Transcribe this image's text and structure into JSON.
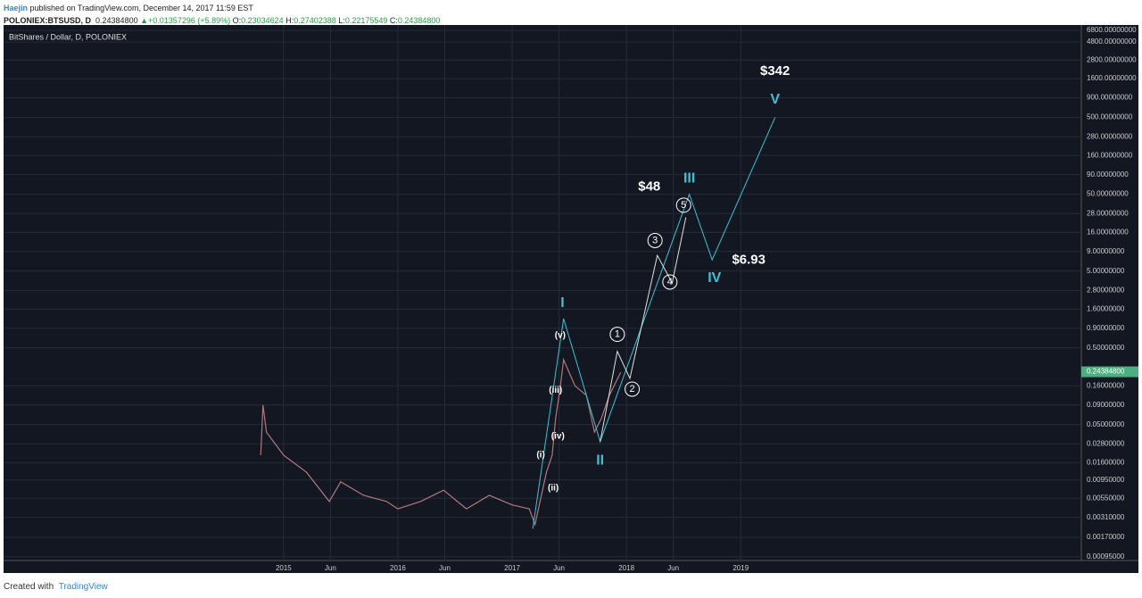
{
  "header": {
    "author": "Haejin",
    "published": "published on TradingView.com, December 14, 2017 11:59 EST",
    "symbol": "POLONIEX:BTSUSD, D",
    "last": "0.24384800",
    "arrow": "▲",
    "change": "+0.01357296 (+5.89%)",
    "o_label": "O:",
    "o": "0.23034624",
    "h_label": "H:",
    "h": "0.27402388",
    "l_label": "L:",
    "l": "0.22175549",
    "c_label": "C:",
    "c": "0.24384800"
  },
  "footer": {
    "created": "Created with",
    "brand": "TradingView"
  },
  "chart_data": {
    "type": "line",
    "title": "BitShares / Dollar, D, POLONIEX",
    "log_scale": true,
    "grid": true,
    "color": "#b0787c",
    "wave_color": "#3fc1d4",
    "sub_color": "#e0e0e0",
    "current_price": 0.243848,
    "current_price_label": "0.24384800",
    "price_tag_color": "#4caf80",
    "xlim": [
      2012.55,
      2021.98
    ],
    "xticks": [
      {
        "value": 2015,
        "label": "2015"
      },
      {
        "value": 2015.41,
        "label": "Jun"
      },
      {
        "value": 2016,
        "label": "2016"
      },
      {
        "value": 2016.41,
        "label": "Jun"
      },
      {
        "value": 2017,
        "label": "2017"
      },
      {
        "value": 2017.41,
        "label": "Jun"
      },
      {
        "value": 2018,
        "label": "2018"
      },
      {
        "value": 2018.41,
        "label": "Jun"
      },
      {
        "value": 2019,
        "label": "2019"
      }
    ],
    "ylim": [
      8000,
      0.00085
    ],
    "yticks": [
      {
        "value": 6800,
        "label": "6800.00000000"
      },
      {
        "value": 4800,
        "label": "4800.00000000"
      },
      {
        "value": 2800,
        "label": "2800.00000000"
      },
      {
        "value": 1600,
        "label": "1600.00000000"
      },
      {
        "value": 900,
        "label": "900.00000000"
      },
      {
        "value": 500,
        "label": "500.00000000"
      },
      {
        "value": 280,
        "label": "280.00000000"
      },
      {
        "value": 160,
        "label": "160.00000000"
      },
      {
        "value": 90,
        "label": "90.00000000"
      },
      {
        "value": 50,
        "label": "50.00000000"
      },
      {
        "value": 28,
        "label": "28.00000000"
      },
      {
        "value": 16,
        "label": "16.00000000"
      },
      {
        "value": 9,
        "label": "9.00000000"
      },
      {
        "value": 5,
        "label": "5.00000000"
      },
      {
        "value": 2.8,
        "label": "2.80000000"
      },
      {
        "value": 1.6,
        "label": "1.60000000"
      },
      {
        "value": 0.9,
        "label": "0.90000000"
      },
      {
        "value": 0.5,
        "label": "0.50000000"
      },
      {
        "value": 0.16,
        "label": "0.16000000"
      },
      {
        "value": 0.09,
        "label": "0.09000000"
      },
      {
        "value": 0.05,
        "label": "0.05000000"
      },
      {
        "value": 0.028,
        "label": "0.02800000"
      },
      {
        "value": 0.016,
        "label": "0.01600000"
      },
      {
        "value": 0.0095,
        "label": "0.00950000"
      },
      {
        "value": 0.0055,
        "label": "0.00550000"
      },
      {
        "value": 0.0031,
        "label": "0.00310000"
      },
      {
        "value": 0.0017,
        "label": "0.00170000"
      },
      {
        "value": 0.00095,
        "label": "0.00095000"
      }
    ],
    "x": [
      2014.8,
      2014.82,
      2014.85,
      2015.0,
      2015.2,
      2015.4,
      2015.5,
      2015.7,
      2015.9,
      2016.0,
      2016.2,
      2016.4,
      2016.6,
      2016.8,
      2017.0,
      2017.15,
      2017.2,
      2017.3,
      2017.35,
      2017.38,
      2017.42,
      2017.45,
      2017.55,
      2017.65,
      2017.72,
      2017.78,
      2017.85,
      2017.95
    ],
    "values": [
      0.02,
      0.09,
      0.04,
      0.02,
      0.012,
      0.005,
      0.009,
      0.006,
      0.005,
      0.004,
      0.005,
      0.007,
      0.004,
      0.006,
      0.0045,
      0.004,
      0.0025,
      0.012,
      0.02,
      0.06,
      0.15,
      0.35,
      0.16,
      0.12,
      0.04,
      0.06,
      0.12,
      0.24
    ],
    "waves": {
      "x": [
        2017.18,
        2017.45,
        2017.77,
        2018.55,
        2018.75,
        2019.3
      ],
      "values": [
        0.0022,
        1.2,
        0.03,
        50,
        7,
        500
      ]
    },
    "subwaves": {
      "x": [
        2017.77,
        2017.92,
        2018.03,
        2018.27,
        2018.4,
        2018.52
      ],
      "values": [
        0.03,
        0.45,
        0.2,
        8,
        3.5,
        25
      ]
    },
    "annotations": [
      {
        "text": "I",
        "kind": "wave",
        "x": 2017.44,
        "y": 1.9
      },
      {
        "text": "II",
        "kind": "wave",
        "x": 2017.77,
        "y": 0.017
      },
      {
        "text": "III",
        "kind": "wave",
        "x": 2018.55,
        "y": 80
      },
      {
        "text": "IV",
        "kind": "wave",
        "x": 2018.77,
        "y": 4
      },
      {
        "text": "V",
        "kind": "wave",
        "x": 2019.3,
        "y": 850
      },
      {
        "text": "(i)",
        "kind": "sub",
        "x": 2017.25,
        "y": 0.02
      },
      {
        "text": "(ii)",
        "kind": "sub",
        "x": 2017.36,
        "y": 0.0075
      },
      {
        "text": "(iii)",
        "kind": "sub",
        "x": 2017.38,
        "y": 0.14
      },
      {
        "text": "(iv)",
        "kind": "sub",
        "x": 2017.4,
        "y": 0.035
      },
      {
        "text": "(v)",
        "kind": "sub",
        "x": 2017.42,
        "y": 0.72
      },
      {
        "text": "1",
        "kind": "circle",
        "x": 2017.92,
        "y": 0.75
      },
      {
        "text": "2",
        "kind": "circle",
        "x": 2018.05,
        "y": 0.145
      },
      {
        "text": "3",
        "kind": "circle",
        "x": 2018.25,
        "y": 12.5
      },
      {
        "text": "4",
        "kind": "circle",
        "x": 2018.38,
        "y": 3.6
      },
      {
        "text": "5",
        "kind": "circle",
        "x": 2018.5,
        "y": 36
      },
      {
        "text": "$48",
        "kind": "price",
        "x": 2018.2,
        "y": 62
      },
      {
        "text": "$342",
        "kind": "price",
        "x": 2019.3,
        "y": 2000
      },
      {
        "text": "$6.93",
        "kind": "price",
        "x": 2019.07,
        "y": 6.9
      }
    ]
  }
}
